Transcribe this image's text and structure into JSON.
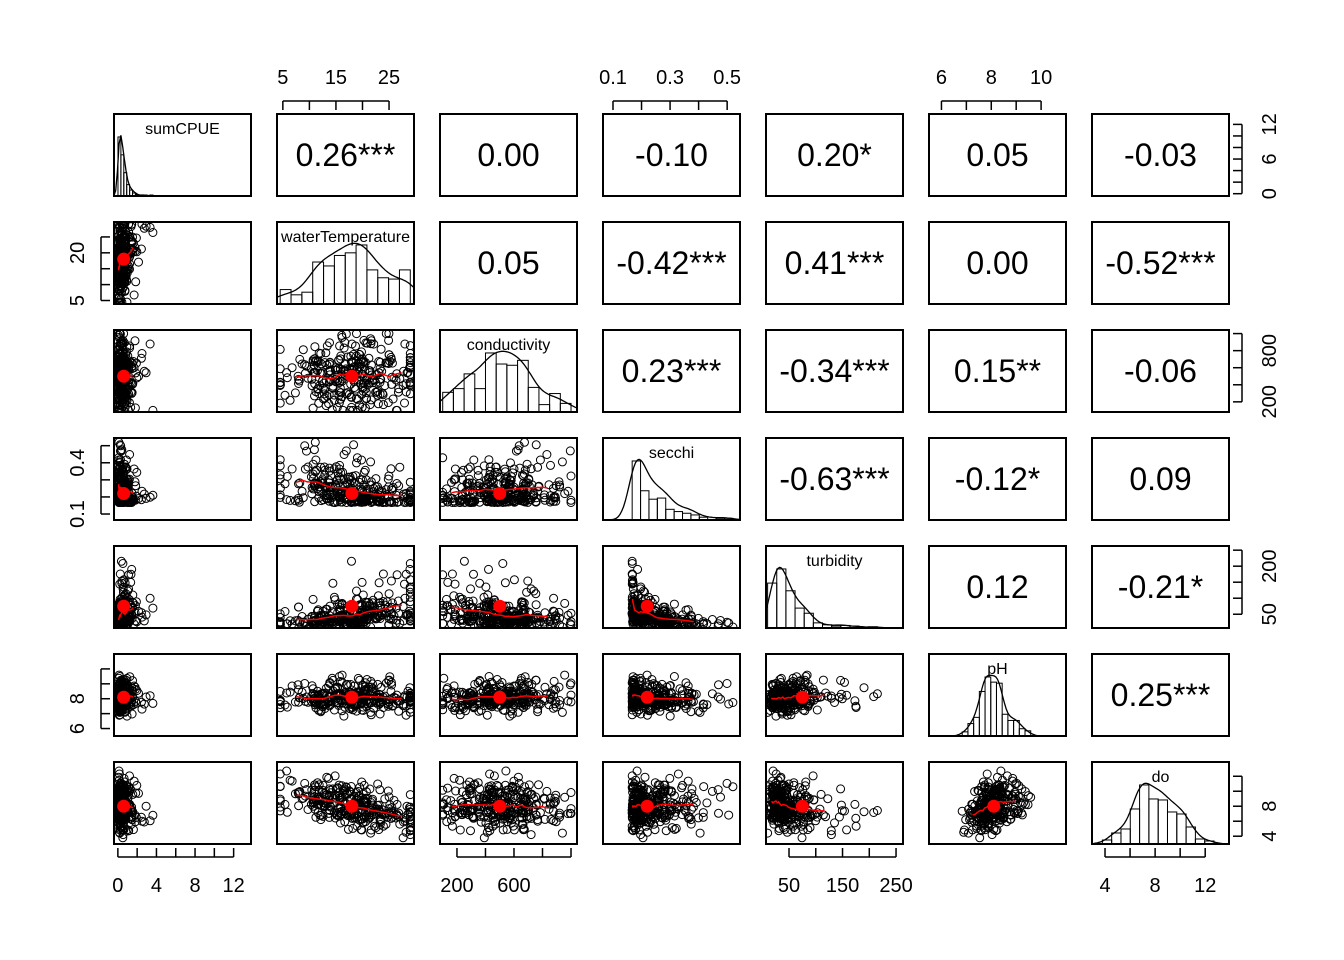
{
  "chart_data": {
    "type": "scatter-matrix",
    "title": "",
    "n_points_simulated": 300,
    "variables": [
      {
        "name": "sumCPUE",
        "range": [
          -0.4,
          13.8
        ],
        "ticks": [
          0,
          2,
          4,
          6,
          8,
          10,
          12
        ],
        "tick_labels_x": [
          "0",
          "4",
          "8",
          "12"
        ],
        "tick_labels_x_at": [
          0,
          4,
          8,
          12
        ],
        "tick_labels_y": [
          "0",
          "6",
          "12"
        ],
        "tick_labels_y_at": [
          0,
          6,
          12
        ],
        "mean": 0.6
      },
      {
        "name": "waterTemperature",
        "range": [
          3.9,
          29.7
        ],
        "ticks": [
          5,
          10,
          15,
          20,
          25
        ],
        "tick_labels_x": [
          "5",
          "15",
          "25"
        ],
        "tick_labels_x_at": [
          5,
          15,
          25
        ],
        "tick_labels_y": [
          "5",
          "20"
        ],
        "tick_labels_y_at": [
          5,
          20
        ],
        "mean": 18
      },
      {
        "name": "conductivity",
        "range": [
          81,
          1042
        ],
        "ticks": [
          200,
          400,
          600,
          800,
          1000
        ],
        "tick_labels_x": [
          "200",
          "600"
        ],
        "tick_labels_x_at": [
          200,
          600
        ],
        "tick_labels_y": [
          "200",
          "800"
        ],
        "tick_labels_y_at": [
          200,
          800
        ],
        "mean": 500
      },
      {
        "name": "secchi",
        "range": [
          0.065,
          0.545
        ],
        "ticks": [
          0.1,
          0.2,
          0.3,
          0.4,
          0.5
        ],
        "tick_labels_x": [
          "0.1",
          "0.3",
          "0.5"
        ],
        "tick_labels_x_at": [
          0.1,
          0.3,
          0.5
        ],
        "tick_labels_y": [
          "0.1",
          "0.4"
        ],
        "tick_labels_y_at": [
          0.1,
          0.4
        ],
        "mean": 0.22
      },
      {
        "name": "turbidity",
        "range": [
          7,
          263
        ],
        "ticks": [
          50,
          100,
          150,
          200,
          250
        ],
        "tick_labels_x": [
          "50",
          "150",
          "250"
        ],
        "tick_labels_x_at": [
          50,
          150,
          250
        ],
        "tick_labels_y": [
          "50",
          "200"
        ],
        "tick_labels_y_at": [
          50,
          200
        ],
        "mean": 75
      },
      {
        "name": "pH",
        "range": [
          5.5,
          11
        ],
        "ticks": [
          6,
          7,
          8,
          9,
          10
        ],
        "tick_labels_x": [
          "6",
          "8",
          "10"
        ],
        "tick_labels_x_at": [
          6,
          8,
          10
        ],
        "tick_labels_y": [
          "6",
          "8"
        ],
        "tick_labels_y_at": [
          6,
          8
        ],
        "mean": 8.1
      },
      {
        "name": "do",
        "range": [
          2.96,
          13.9
        ],
        "ticks": [
          4,
          6,
          8,
          10,
          12
        ],
        "tick_labels_x": [
          "4",
          "8",
          "12"
        ],
        "tick_labels_x_at": [
          4,
          8,
          12
        ],
        "tick_labels_y": [
          "4",
          "8"
        ],
        "tick_labels_y_at": [
          4,
          8
        ],
        "mean": 8
      }
    ],
    "correlations": [
      {
        "row": 0,
        "col": 1,
        "r": 0.26,
        "label": "0.26***"
      },
      {
        "row": 0,
        "col": 2,
        "r": 0.0,
        "label": "0.00"
      },
      {
        "row": 0,
        "col": 3,
        "r": -0.1,
        "label": "-0.10"
      },
      {
        "row": 0,
        "col": 4,
        "r": 0.2,
        "label": "0.20*"
      },
      {
        "row": 0,
        "col": 5,
        "r": 0.05,
        "label": "0.05"
      },
      {
        "row": 0,
        "col": 6,
        "r": -0.03,
        "label": "-0.03"
      },
      {
        "row": 1,
        "col": 2,
        "r": 0.05,
        "label": "0.05"
      },
      {
        "row": 1,
        "col": 3,
        "r": -0.42,
        "label": "-0.42***"
      },
      {
        "row": 1,
        "col": 4,
        "r": 0.41,
        "label": "0.41***"
      },
      {
        "row": 1,
        "col": 5,
        "r": 0.0,
        "label": "0.00"
      },
      {
        "row": 1,
        "col": 6,
        "r": -0.52,
        "label": "-0.52***"
      },
      {
        "row": 2,
        "col": 3,
        "r": 0.23,
        "label": "0.23***"
      },
      {
        "row": 2,
        "col": 4,
        "r": -0.34,
        "label": "-0.34***"
      },
      {
        "row": 2,
        "col": 5,
        "r": 0.15,
        "label": "0.15**"
      },
      {
        "row": 2,
        "col": 6,
        "r": -0.06,
        "label": "-0.06"
      },
      {
        "row": 3,
        "col": 4,
        "r": -0.63,
        "label": "-0.63***"
      },
      {
        "row": 3,
        "col": 5,
        "r": -0.12,
        "label": "-0.12*"
      },
      {
        "row": 3,
        "col": 6,
        "r": 0.09,
        "label": "0.09"
      },
      {
        "row": 4,
        "col": 5,
        "r": 0.12,
        "label": "0.12"
      },
      {
        "row": 4,
        "col": 6,
        "r": -0.21,
        "label": "-0.21*"
      },
      {
        "row": 5,
        "col": 6,
        "r": 0.25,
        "label": "0.25***"
      }
    ],
    "colors": {
      "points": "#000000",
      "smooth": "#ff0000",
      "center": "#ff0000"
    }
  }
}
